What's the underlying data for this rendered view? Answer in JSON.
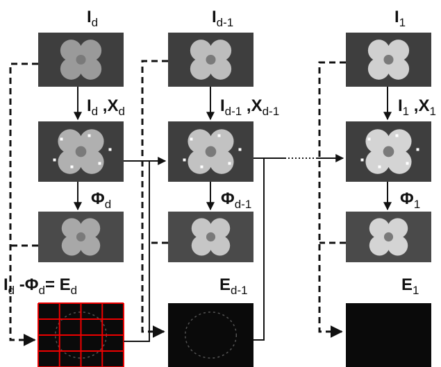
{
  "titles": [
    [
      {
        "text": "I",
        "sub": "d"
      }
    ],
    [
      {
        "text": "I",
        "sub": "d-1"
      }
    ],
    [
      {
        "text": "I",
        "sub": "1"
      }
    ]
  ],
  "pair_labels": [
    [
      {
        "text": "I",
        "sub": "d"
      },
      {
        "text": " ,X",
        "sub": "d"
      }
    ],
    [
      {
        "text": "I",
        "sub": "d-1"
      },
      {
        "text": " ,X",
        "sub": "d-1"
      }
    ],
    [
      {
        "text": "I",
        "sub": "1"
      },
      {
        "text": " ,X",
        "sub": "1"
      }
    ]
  ],
  "phi_labels": [
    [
      {
        "text": "Φ",
        "sub": "d"
      }
    ],
    [
      {
        "text": "Φ",
        "sub": "d-1"
      }
    ],
    [
      {
        "text": "Φ",
        "sub": "1"
      }
    ]
  ],
  "error_labels": [
    [
      {
        "text": "I",
        "sub": "d"
      },
      {
        "text": " -Φ",
        "sub": "d"
      },
      {
        "text": "= E",
        "sub": "d"
      }
    ],
    [
      {
        "text": "E",
        "sub": "d-1"
      }
    ],
    [
      {
        "text": "E",
        "sub": "1"
      }
    ]
  ]
}
